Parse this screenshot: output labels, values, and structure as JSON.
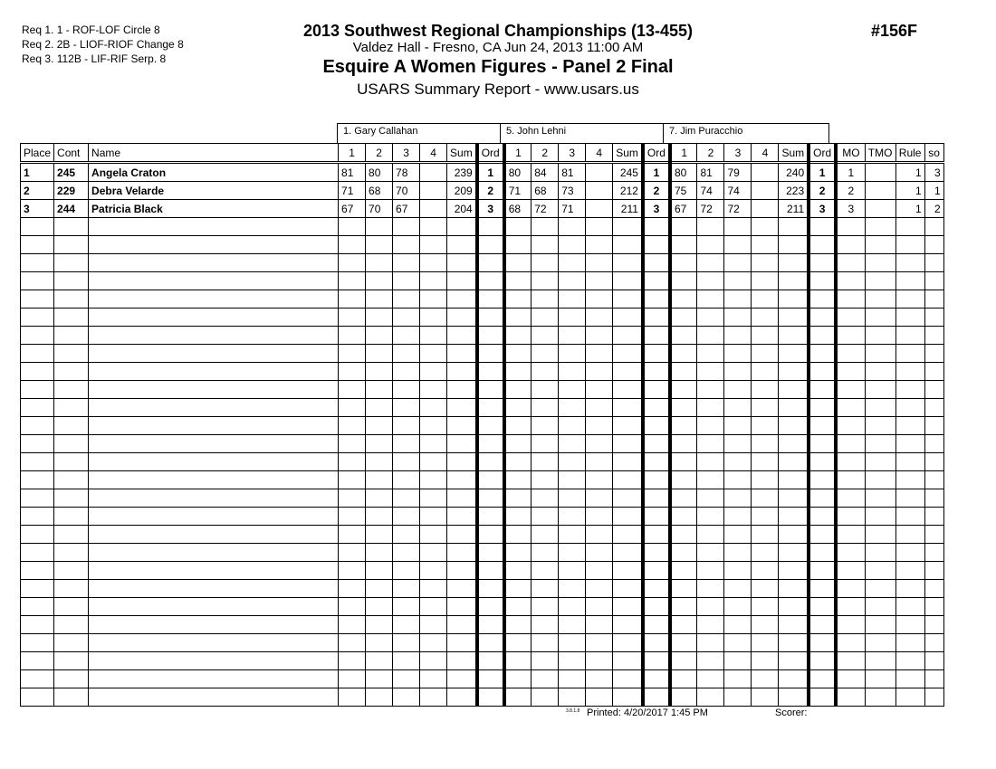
{
  "requirements": [
    "Req  1.  1 - ROF-LOF Circle 8",
    "Req  2.  2B - LIOF-RIOF Change 8",
    "Req  3.  112B - LIF-RIF Serp. 8"
  ],
  "header": {
    "title": "2013 Southwest Regional Championships (13-455)",
    "venue": "Valdez Hall - Fresno, CA  Jun 24, 2013  11:00 AM",
    "event": "Esquire A Women Figures - Panel 2 Final",
    "report": "USARS Summary Report - www.usars.us",
    "event_number": "#156F"
  },
  "judges": [
    "1.  Gary Callahan",
    "5.  John Lehni",
    "7.  Jim Puracchio"
  ],
  "columns": {
    "place": "Place",
    "cont": "Cont",
    "name": "Name",
    "judge_cols": [
      "1",
      "2",
      "3",
      "4",
      "Sum",
      "Ord"
    ],
    "mo": "MO",
    "tmo": "TMO",
    "rule": "Rule",
    "so": "so"
  },
  "rows": [
    {
      "place": "1",
      "cont": "245",
      "name": "Angela Craton",
      "judges": [
        [
          "81",
          "80",
          "78",
          "",
          "239",
          "1"
        ],
        [
          "80",
          "84",
          "81",
          "",
          "245",
          "1"
        ],
        [
          "80",
          "81",
          "79",
          "",
          "240",
          "1"
        ]
      ],
      "mo": "1",
      "tmo": "",
      "rule": "1",
      "so": "3"
    },
    {
      "place": "2",
      "cont": "229",
      "name": "Debra Velarde",
      "judges": [
        [
          "71",
          "68",
          "70",
          "",
          "209",
          "2"
        ],
        [
          "71",
          "68",
          "73",
          "",
          "212",
          "2"
        ],
        [
          "75",
          "74",
          "74",
          "",
          "223",
          "2"
        ]
      ],
      "mo": "2",
      "tmo": "",
      "rule": "1",
      "so": "1"
    },
    {
      "place": "3",
      "cont": "244",
      "name": "Patricia Black",
      "judges": [
        [
          "67",
          "70",
          "67",
          "",
          "204",
          "3"
        ],
        [
          "68",
          "72",
          "71",
          "",
          "211",
          "3"
        ],
        [
          "67",
          "72",
          "72",
          "",
          "211",
          "3"
        ]
      ],
      "mo": "3",
      "tmo": "",
      "rule": "1",
      "so": "2"
    }
  ],
  "footer": {
    "version": "3.8.1.8",
    "printed": "Printed:  4/20/2017  1:45 PM",
    "scorer": "Scorer:"
  }
}
